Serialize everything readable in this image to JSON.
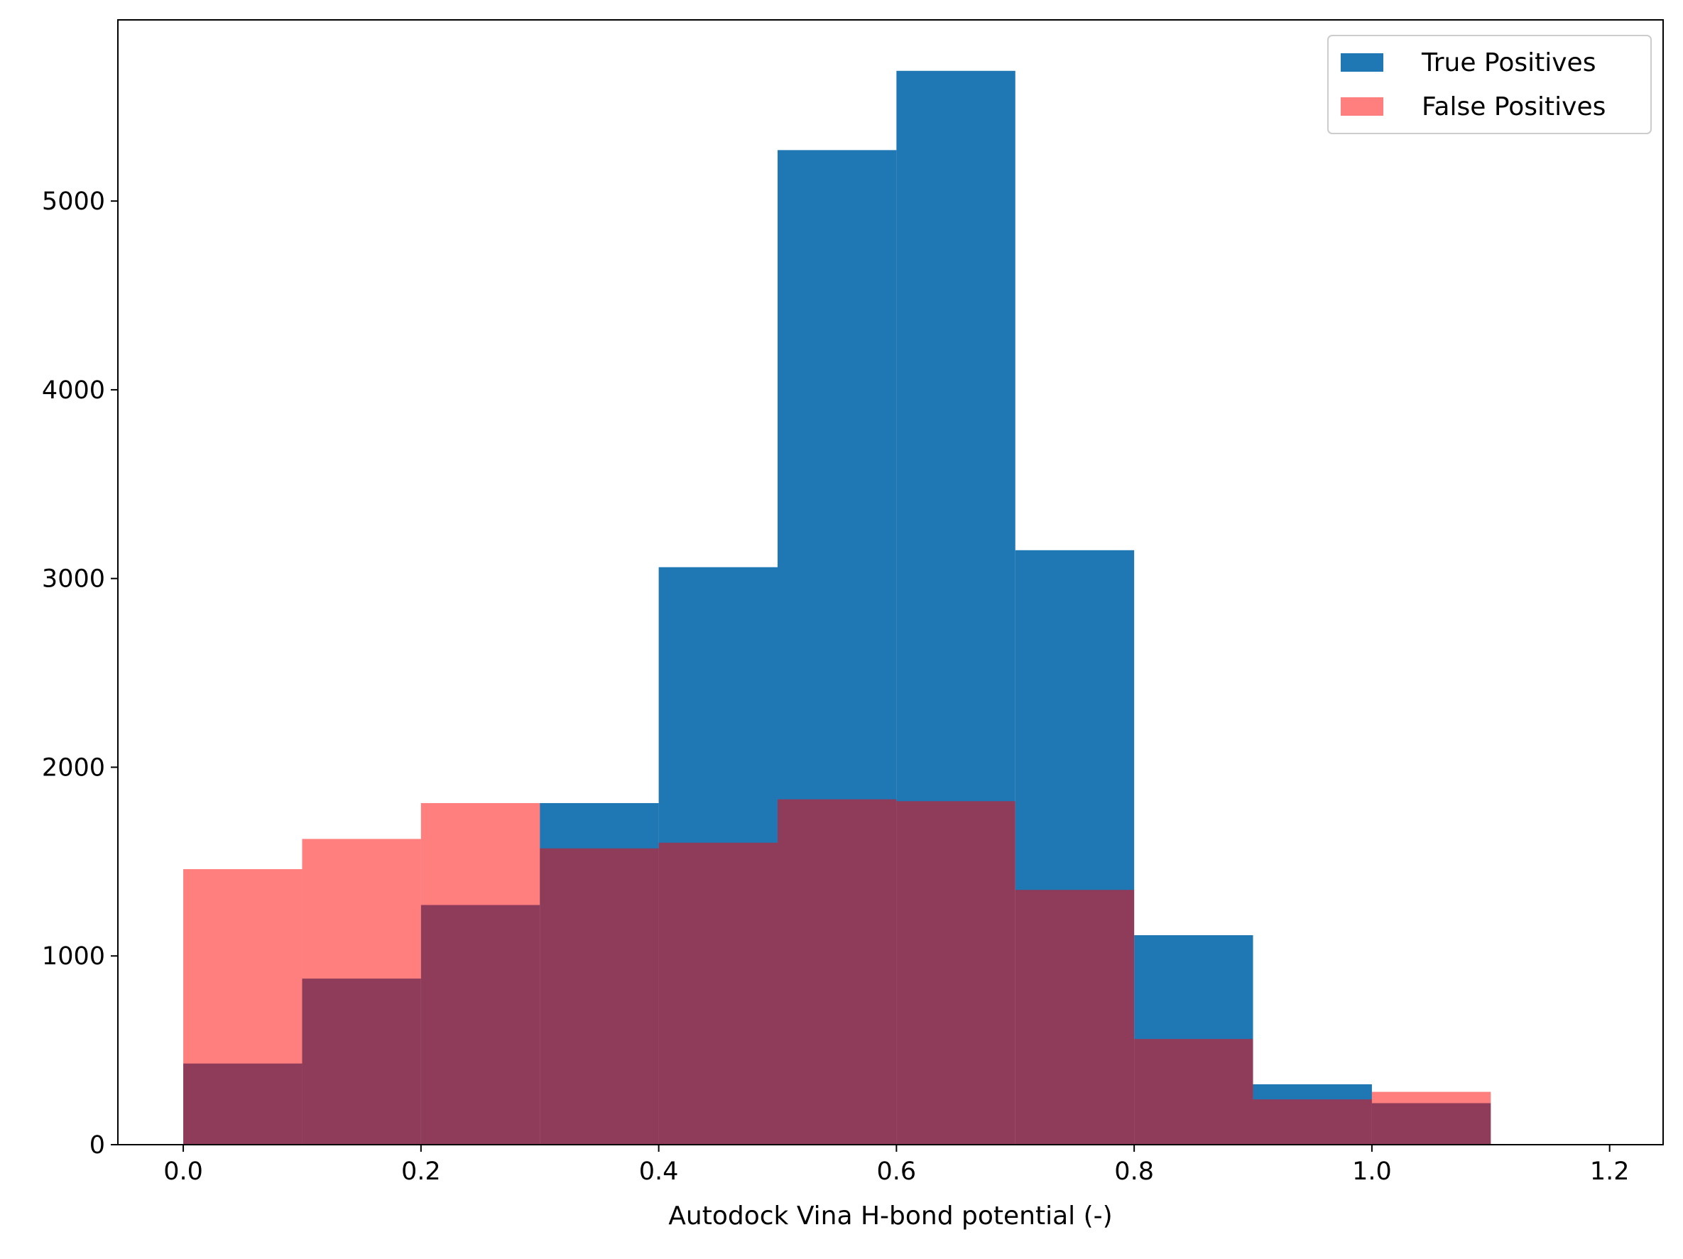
{
  "chart_data": {
    "type": "bar",
    "subtype": "overlaid-histogram",
    "title": "",
    "xlabel": "Autodock Vina H-bond potential (-)",
    "ylabel": "",
    "xlim": [
      -0.055,
      1.245
    ],
    "ylim": [
      0,
      5960
    ],
    "x_ticks": [
      0.0,
      0.2,
      0.4,
      0.6,
      0.8,
      1.0,
      1.2
    ],
    "x_tick_labels": [
      "0.0",
      "0.2",
      "0.4",
      "0.6",
      "0.8",
      "1.0",
      "1.2"
    ],
    "y_ticks": [
      0,
      1000,
      2000,
      3000,
      4000,
      5000
    ],
    "y_tick_labels": [
      "0",
      "1000",
      "2000",
      "3000",
      "4000",
      "5000"
    ],
    "bin_edges": [
      0.0,
      0.1,
      0.2,
      0.3,
      0.4,
      0.5,
      0.6,
      0.7,
      0.8,
      0.9,
      1.0,
      1.1
    ],
    "grid": false,
    "legend_position": "top-right",
    "series": [
      {
        "name": "True Positives",
        "color": "#1f77b4",
        "opacity": 1.0,
        "values": [
          430,
          880,
          1270,
          1810,
          3060,
          5270,
          5690,
          3150,
          1110,
          320,
          220
        ]
      },
      {
        "name": "False Positives",
        "color": "#ff0000",
        "opacity": 0.5,
        "values": [
          1460,
          1620,
          1810,
          1570,
          1600,
          1830,
          1820,
          1350,
          560,
          240,
          280
        ]
      }
    ]
  }
}
